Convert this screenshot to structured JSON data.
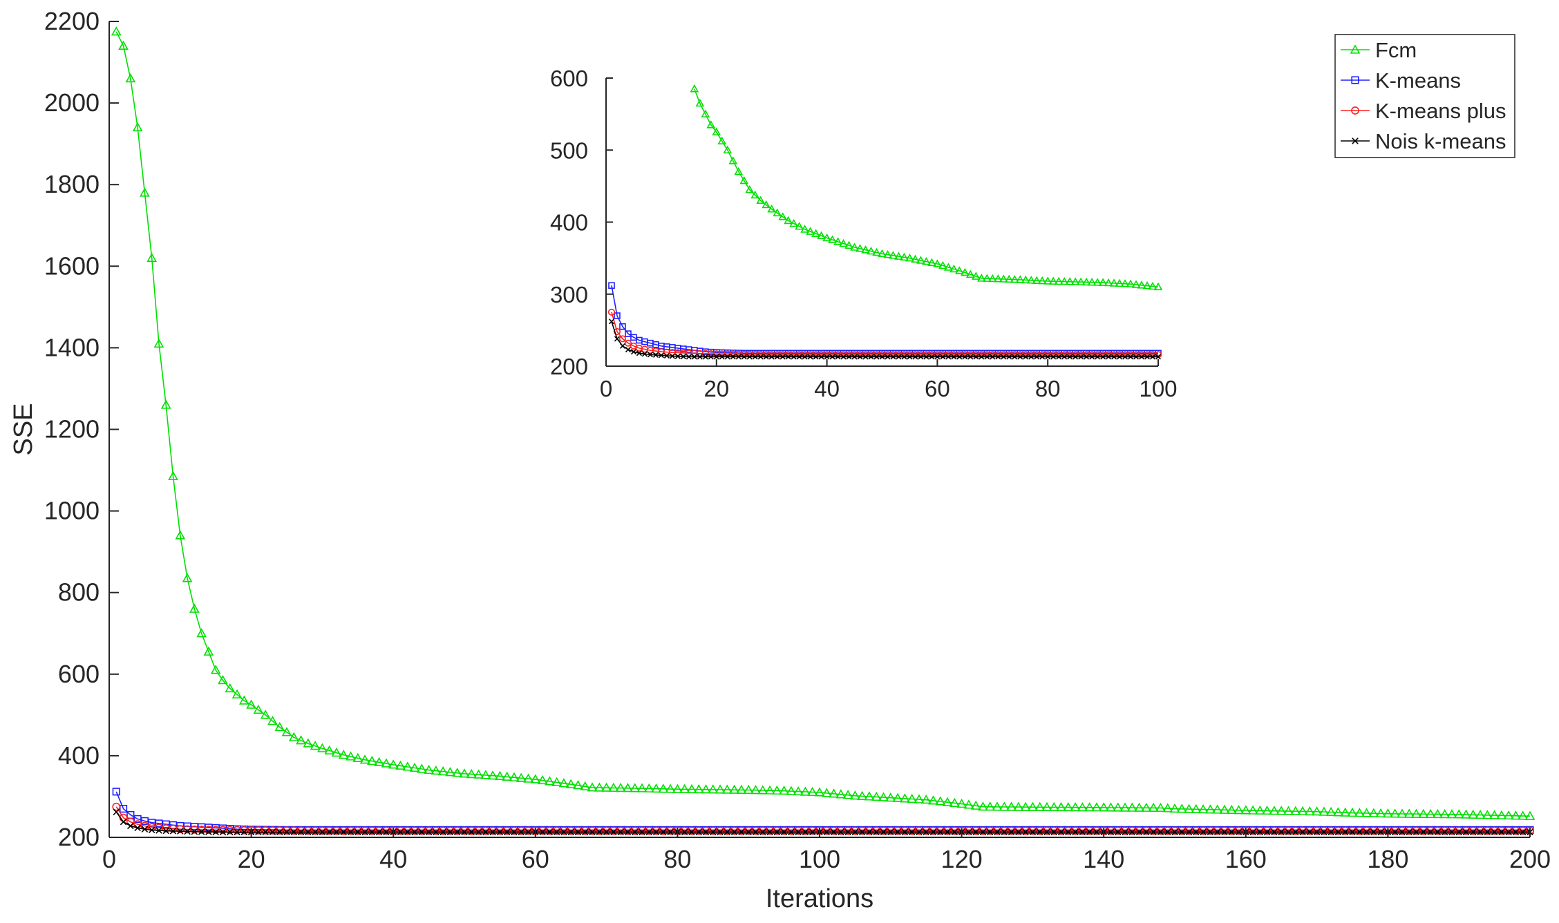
{
  "chart_data": {
    "type": "line",
    "xlabel": "Iterations",
    "ylabel": "SSE",
    "xlim": [
      0,
      200
    ],
    "ylim": [
      200,
      2200
    ],
    "xticks": [
      "0",
      "20",
      "40",
      "60",
      "80",
      "100",
      "120",
      "140",
      "160",
      "180",
      "200"
    ],
    "yticks": [
      "200",
      "400",
      "600",
      "800",
      "1000",
      "1200",
      "1400",
      "1600",
      "1800",
      "2000",
      "2200"
    ],
    "grid": false,
    "legend_position": "top-right",
    "series": [
      {
        "name": "Fcm",
        "color": "#00e000",
        "marker": "triangle",
        "points": [
          [
            1,
            2175
          ],
          [
            2,
            2140
          ],
          [
            3,
            2060
          ],
          [
            4,
            1940
          ],
          [
            5,
            1780
          ],
          [
            6,
            1620
          ],
          [
            7,
            1410
          ],
          [
            8,
            1260
          ],
          [
            9,
            1085
          ],
          [
            10,
            940
          ],
          [
            11,
            835
          ],
          [
            12,
            760
          ],
          [
            13,
            700
          ],
          [
            14,
            655
          ],
          [
            15,
            610
          ],
          [
            16,
            585
          ],
          [
            17,
            565
          ],
          [
            18,
            550
          ],
          [
            19,
            535
          ],
          [
            20,
            525
          ],
          [
            22,
            500
          ],
          [
            24,
            470
          ],
          [
            26,
            445
          ],
          [
            28,
            430
          ],
          [
            30,
            418
          ],
          [
            33,
            402
          ],
          [
            36,
            390
          ],
          [
            40,
            378
          ],
          [
            45,
            365
          ],
          [
            50,
            356
          ],
          [
            55,
            350
          ],
          [
            60,
            342
          ],
          [
            65,
            330
          ],
          [
            68,
            322
          ],
          [
            75,
            320
          ],
          [
            80,
            318
          ],
          [
            90,
            316
          ],
          [
            95,
            314
          ],
          [
            100,
            310
          ],
          [
            105,
            302
          ],
          [
            110,
            297
          ],
          [
            115,
            292
          ],
          [
            120,
            282
          ],
          [
            123,
            275
          ],
          [
            130,
            274
          ],
          [
            140,
            273
          ],
          [
            148,
            272
          ],
          [
            150,
            270
          ],
          [
            155,
            268
          ],
          [
            160,
            266
          ],
          [
            170,
            263
          ],
          [
            175,
            260
          ],
          [
            180,
            258
          ],
          [
            190,
            256
          ],
          [
            200,
            252
          ]
        ]
      },
      {
        "name": "K-means",
        "color": "#2020ff",
        "marker": "square",
        "points": [
          [
            1,
            312
          ],
          [
            2,
            270
          ],
          [
            3,
            255
          ],
          [
            4,
            245
          ],
          [
            5,
            240
          ],
          [
            6,
            236
          ],
          [
            8,
            232
          ],
          [
            10,
            228
          ],
          [
            12,
            226
          ],
          [
            14,
            224
          ],
          [
            16,
            222
          ],
          [
            18,
            220
          ],
          [
            20,
            219
          ],
          [
            25,
            218
          ],
          [
            30,
            218
          ],
          [
            50,
            218
          ],
          [
            100,
            218
          ],
          [
            150,
            218
          ],
          [
            200,
            218
          ]
        ]
      },
      {
        "name": "K-means plus",
        "color": "#ff2020",
        "marker": "circle",
        "points": [
          [
            1,
            275
          ],
          [
            2,
            248
          ],
          [
            3,
            238
          ],
          [
            4,
            232
          ],
          [
            5,
            228
          ],
          [
            6,
            225
          ],
          [
            8,
            222
          ],
          [
            10,
            220
          ],
          [
            12,
            219
          ],
          [
            15,
            218
          ],
          [
            20,
            217
          ],
          [
            30,
            216
          ],
          [
            50,
            216
          ],
          [
            100,
            216
          ],
          [
            150,
            216
          ],
          [
            200,
            216
          ]
        ]
      },
      {
        "name": "Nois k-means",
        "color": "#000000",
        "marker": "x",
        "points": [
          [
            1,
            262
          ],
          [
            2,
            238
          ],
          [
            3,
            228
          ],
          [
            4,
            223
          ],
          [
            5,
            220
          ],
          [
            6,
            218
          ],
          [
            8,
            216
          ],
          [
            10,
            215
          ],
          [
            12,
            214
          ],
          [
            15,
            213
          ],
          [
            20,
            213
          ],
          [
            30,
            213
          ],
          [
            50,
            213
          ],
          [
            100,
            213
          ],
          [
            150,
            213
          ],
          [
            200,
            213
          ]
        ]
      }
    ],
    "inset": {
      "xlim": [
        0,
        100
      ],
      "ylim": [
        200,
        600
      ],
      "xticks": [
        "0",
        "20",
        "40",
        "60",
        "80",
        "100"
      ],
      "yticks": [
        "200",
        "300",
        "400",
        "500",
        "600"
      ]
    }
  }
}
